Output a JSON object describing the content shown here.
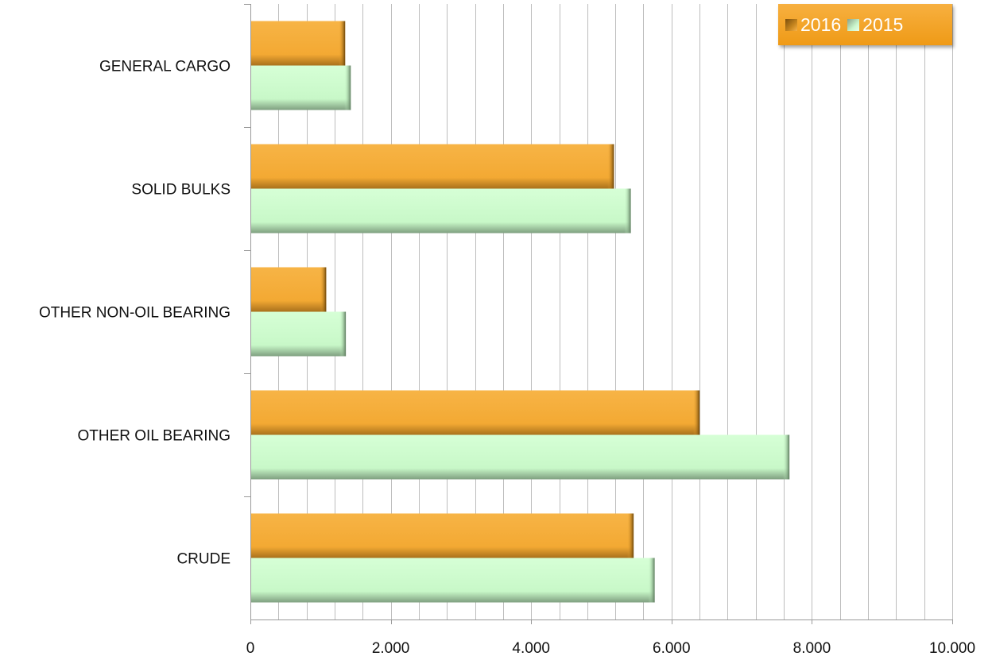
{
  "chart_data": {
    "type": "bar",
    "orientation": "horizontal",
    "categories": [
      "GENERAL CARGO",
      "SOLID BULKS",
      "OTHER NON-OIL BEARING",
      "OTHER OIL BEARING",
      "CRUDE"
    ],
    "series": [
      {
        "name": "2016",
        "color": "#f5b13e",
        "values": [
          1350,
          5180,
          1080,
          6400,
          5460
        ]
      },
      {
        "name": "2015",
        "color": "#ccffcc",
        "values": [
          1430,
          5420,
          1360,
          7680,
          5760
        ]
      }
    ],
    "xlim": [
      0,
      10000
    ],
    "xticks": [
      0,
      2000,
      4000,
      6000,
      8000,
      10000
    ],
    "xtick_labels": [
      "0",
      "2.000",
      "4.000",
      "6.000",
      "8.000",
      "10.000"
    ],
    "grid": "vertical",
    "legend_position": "top-right"
  }
}
